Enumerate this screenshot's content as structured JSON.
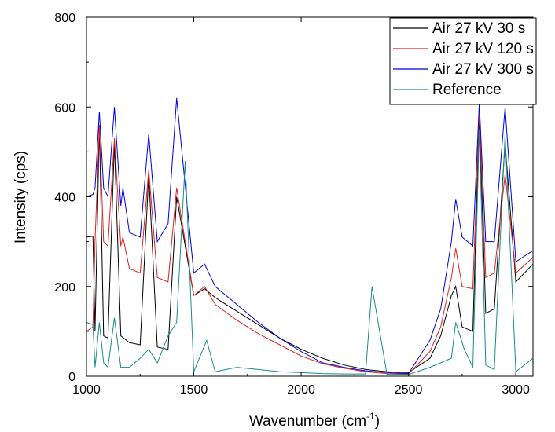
{
  "chart_data": {
    "type": "line",
    "title": "",
    "xlabel": {
      "text": "Wavenumber (cm",
      "sup": "-1",
      "tail": ")"
    },
    "ylabel": "Intensity (cps)",
    "xlim": [
      1000,
      3080
    ],
    "ylim": [
      0,
      800
    ],
    "x_ticks": [
      1000,
      1500,
      2000,
      2500,
      3000
    ],
    "x_tick_labels": [
      "1000",
      "1500",
      "2000",
      "2500",
      "3000"
    ],
    "y_ticks": [
      0,
      200,
      400,
      600,
      800
    ],
    "y_tick_labels": [
      "0",
      "200",
      "400",
      "600",
      "800"
    ],
    "grid": false,
    "legend_position": "top-right",
    "series": [
      {
        "name": "Air 27 kV 30 s",
        "color": "#000000",
        "x": [
          1000,
          1030,
          1040,
          1060,
          1080,
          1100,
          1130,
          1160,
          1200,
          1250,
          1290,
          1330,
          1380,
          1420,
          1500,
          1550,
          1600,
          1700,
          1800,
          1900,
          2000,
          2100,
          2200,
          2300,
          2400,
          2500,
          2600,
          2650,
          2700,
          2720,
          2750,
          2800,
          2830,
          2860,
          2900,
          2950,
          3000,
          3080
        ],
        "y": [
          310,
          312,
          100,
          560,
          90,
          85,
          520,
          90,
          75,
          70,
          450,
          65,
          60,
          400,
          180,
          195,
          175,
          145,
          115,
          85,
          60,
          40,
          25,
          15,
          10,
          8,
          40,
          90,
          180,
          200,
          110,
          100,
          580,
          140,
          150,
          520,
          210,
          250
        ]
      },
      {
        "name": "Air 27 kV 120 s",
        "color": "#e02020",
        "x": [
          1000,
          1030,
          1040,
          1060,
          1080,
          1100,
          1130,
          1160,
          1170,
          1200,
          1250,
          1290,
          1330,
          1380,
          1420,
          1500,
          1550,
          1600,
          1700,
          1800,
          1900,
          2000,
          2100,
          2200,
          2300,
          2400,
          2500,
          2600,
          2650,
          2700,
          2720,
          2750,
          2800,
          2830,
          2860,
          2900,
          2950,
          3000,
          3080
        ],
        "y": [
          100,
          110,
          300,
          560,
          300,
          290,
          530,
          290,
          310,
          240,
          230,
          460,
          220,
          210,
          420,
          180,
          200,
          160,
          125,
          95,
          70,
          45,
          28,
          18,
          10,
          6,
          5,
          55,
          110,
          220,
          285,
          200,
          195,
          590,
          220,
          230,
          450,
          230,
          265
        ]
      },
      {
        "name": "Air 27 kV 300 s",
        "color": "#0000dd",
        "x": [
          1000,
          1030,
          1040,
          1060,
          1080,
          1100,
          1130,
          1160,
          1170,
          1200,
          1250,
          1290,
          1330,
          1380,
          1420,
          1500,
          1550,
          1600,
          1700,
          1800,
          1900,
          2000,
          2100,
          2200,
          2300,
          2400,
          2500,
          2600,
          2650,
          2700,
          2720,
          2750,
          2800,
          2830,
          2860,
          2900,
          2950,
          3000,
          3080
        ],
        "y": [
          400,
          405,
          420,
          590,
          420,
          400,
          600,
          380,
          420,
          320,
          310,
          540,
          300,
          340,
          620,
          230,
          250,
          200,
          160,
          120,
          85,
          55,
          30,
          20,
          12,
          8,
          6,
          80,
          150,
          300,
          395,
          310,
          290,
          610,
          300,
          300,
          600,
          255,
          280
        ]
      },
      {
        "name": "Reference",
        "color": "#1a8a8a",
        "x": [
          1000,
          1030,
          1040,
          1060,
          1080,
          1100,
          1130,
          1160,
          1200,
          1250,
          1290,
          1330,
          1380,
          1420,
          1460,
          1500,
          1560,
          1600,
          1700,
          1800,
          1900,
          2000,
          2100,
          2200,
          2300,
          2330,
          2400,
          2500,
          2600,
          2700,
          2720,
          2760,
          2800,
          2830,
          2860,
          2900,
          2950,
          3000,
          3080
        ],
        "y": [
          120,
          115,
          20,
          120,
          30,
          20,
          130,
          20,
          20,
          40,
          60,
          30,
          90,
          120,
          480,
          10,
          80,
          10,
          20,
          15,
          10,
          8,
          6,
          5,
          5,
          200,
          4,
          4,
          20,
          40,
          120,
          60,
          20,
          550,
          25,
          15,
          540,
          10,
          40
        ]
      }
    ]
  }
}
